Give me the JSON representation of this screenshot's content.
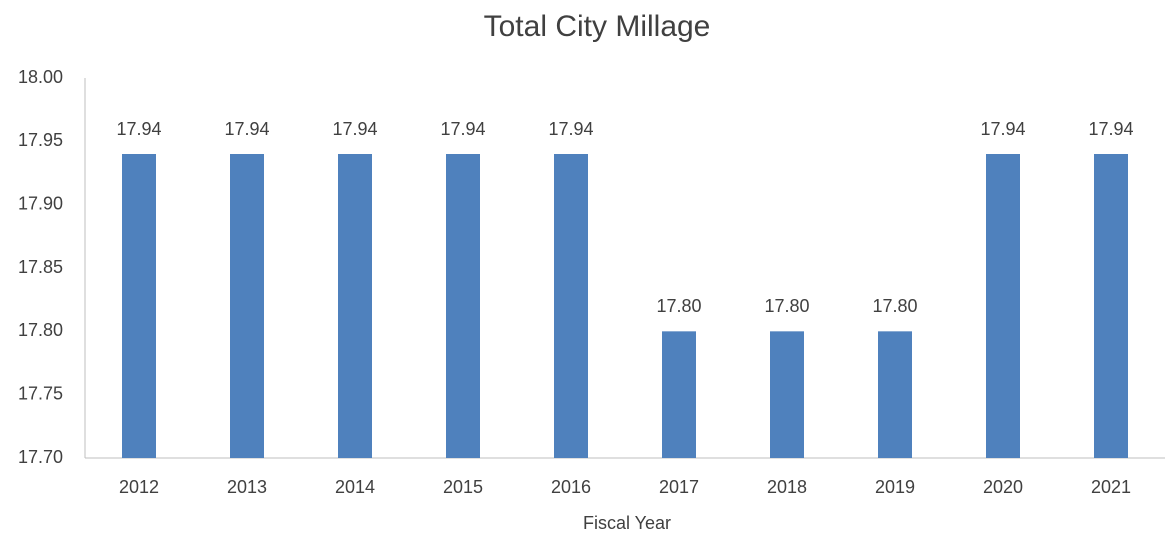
{
  "chart_data": {
    "type": "bar",
    "title": "Total City Millage",
    "x_label": "Fiscal Year",
    "categories": [
      "2012",
      "2013",
      "2014",
      "2015",
      "2016",
      "2017",
      "2018",
      "2019",
      "2020",
      "2021"
    ],
    "values": [
      17.94,
      17.94,
      17.94,
      17.94,
      17.94,
      17.8,
      17.8,
      17.8,
      17.94,
      17.94
    ],
    "value_labels": [
      "17.94",
      "17.94",
      "17.94",
      "17.94",
      "17.94",
      "17.80",
      "17.80",
      "17.80",
      "17.94",
      "17.94"
    ],
    "color": "#4f81bd",
    "ylim": [
      17.7,
      18.0
    ],
    "yticks": [
      {
        "value": 17.7,
        "label": "17.70"
      },
      17.75,
      {
        "value": 17.8,
        "label": "17.80"
      },
      17.85,
      {
        "value": 17.9,
        "label": "17.90"
      },
      17.95,
      {
        "value": 18.0,
        "label": "18.00"
      }
    ],
    "grid": false
  }
}
